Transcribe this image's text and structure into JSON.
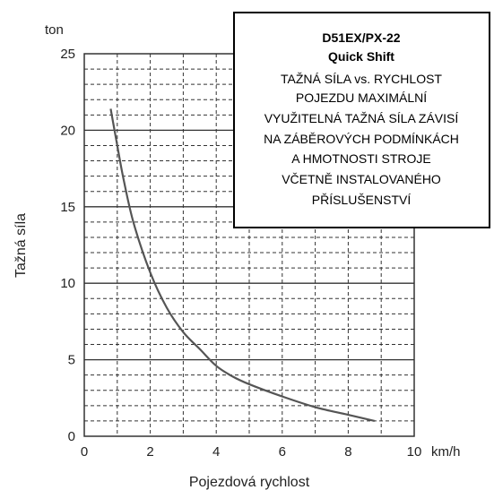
{
  "chart_data": {
    "type": "line",
    "xlabel": "Pojezdová rychlost",
    "ylabel": "Tažná síla",
    "x_unit": "km/h",
    "y_unit": "ton",
    "xlim": [
      0,
      10
    ],
    "ylim": [
      0,
      25
    ],
    "x_ticks": [
      "0",
      "2",
      "4",
      "6",
      "8",
      "10"
    ],
    "y_ticks": [
      "0",
      "5",
      "10",
      "15",
      "20",
      "25"
    ],
    "grid": true,
    "legend": {
      "placement": "top-right",
      "title_lines": [
        "D51EX/PX-22",
        "Quick Shift"
      ],
      "body_lines": [
        "TAŽNÁ SÍLA vs. RYCHLOST",
        "POJEZDU MAXIMÁLNÍ",
        "VYUŽITELNÁ TAŽNÁ SÍLA ZÁVISÍ",
        "NA ZÁBĚROVÝCH PODMÍNKÁCH",
        "A HMOTNOSTI STROJE",
        "VČETNĚ INSTALOVANÉHO",
        "PŘÍSLUŠENSTVÍ"
      ]
    },
    "series": [
      {
        "x": [
          0.8,
          1.0,
          1.2,
          1.5,
          2.0,
          2.5,
          3.0,
          3.5,
          4.0,
          4.5,
          5.0,
          6.0,
          7.0,
          8.0,
          8.8
        ],
        "y": [
          21.4,
          19.0,
          16.7,
          13.9,
          10.7,
          8.4,
          6.8,
          5.7,
          4.6,
          3.9,
          3.4,
          2.6,
          1.9,
          1.4,
          1.0
        ]
      }
    ],
    "colors": {
      "curve": "#555555",
      "grid": "#333333"
    }
  }
}
